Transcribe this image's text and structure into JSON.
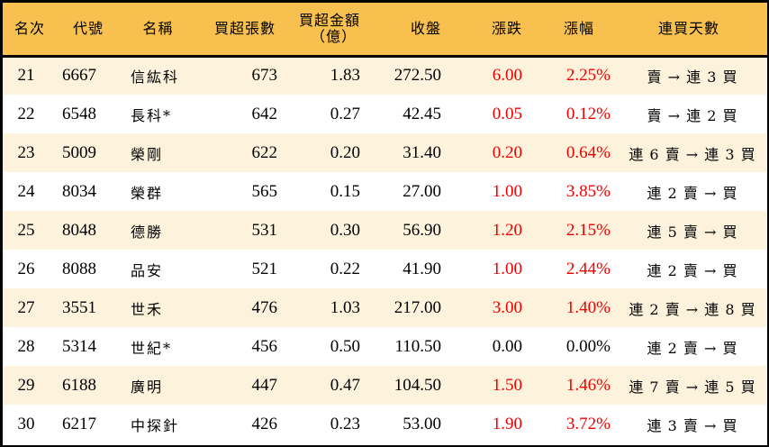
{
  "table": {
    "headers": {
      "rank": "名次",
      "code": "代號",
      "name": "名稱",
      "net_buy_lots": "買超張數",
      "net_buy_amount_line1": "買超金額",
      "net_buy_amount_line2": "（億）",
      "close": "收盤",
      "change": "漲跌",
      "change_pct": "漲幅",
      "consecutive_days": "連買天數"
    },
    "colors": {
      "header_bg": "#f8c04e",
      "row_alt_bg": "#fdf3dc",
      "up": "#ee0000"
    },
    "rows": [
      {
        "rank": "21",
        "code": "6667",
        "name": "信紘科",
        "lots": "673",
        "amount": "1.83",
        "close": "272.50",
        "change": "6.00",
        "pct": "2.25%",
        "streak": "賣 → 連 3 買",
        "up": true
      },
      {
        "rank": "22",
        "code": "6548",
        "name": "長科*",
        "lots": "642",
        "amount": "0.27",
        "close": "42.45",
        "change": "0.05",
        "pct": "0.12%",
        "streak": "賣 → 連 2 買",
        "up": true
      },
      {
        "rank": "23",
        "code": "5009",
        "name": "榮剛",
        "lots": "622",
        "amount": "0.20",
        "close": "31.40",
        "change": "0.20",
        "pct": "0.64%",
        "streak": "連 6 賣 → 連 3 買",
        "up": true
      },
      {
        "rank": "24",
        "code": "8034",
        "name": "榮群",
        "lots": "565",
        "amount": "0.15",
        "close": "27.00",
        "change": "1.00",
        "pct": "3.85%",
        "streak": "連 2 賣 → 買",
        "up": true
      },
      {
        "rank": "25",
        "code": "8048",
        "name": "德勝",
        "lots": "531",
        "amount": "0.30",
        "close": "56.90",
        "change": "1.20",
        "pct": "2.15%",
        "streak": "連 5 賣 → 買",
        "up": true
      },
      {
        "rank": "26",
        "code": "8088",
        "name": "品安",
        "lots": "521",
        "amount": "0.22",
        "close": "41.90",
        "change": "1.00",
        "pct": "2.44%",
        "streak": "連 2 賣 → 買",
        "up": true
      },
      {
        "rank": "27",
        "code": "3551",
        "name": "世禾",
        "lots": "476",
        "amount": "1.03",
        "close": "217.00",
        "change": "3.00",
        "pct": "1.40%",
        "streak": "連 2 賣 → 連 8 買",
        "up": true
      },
      {
        "rank": "28",
        "code": "5314",
        "name": "世紀*",
        "lots": "456",
        "amount": "0.50",
        "close": "110.50",
        "change": "0.00",
        "pct": "0.00%",
        "streak": "連 2 賣 → 買",
        "up": false
      },
      {
        "rank": "29",
        "code": "6188",
        "name": "廣明",
        "lots": "447",
        "amount": "0.47",
        "close": "104.50",
        "change": "1.50",
        "pct": "1.46%",
        "streak": "連 7 賣 → 連 5 買",
        "up": true
      },
      {
        "rank": "30",
        "code": "6217",
        "name": "中探針",
        "lots": "426",
        "amount": "0.23",
        "close": "53.00",
        "change": "1.90",
        "pct": "3.72%",
        "streak": "連 3 賣 → 買",
        "up": true
      }
    ]
  }
}
